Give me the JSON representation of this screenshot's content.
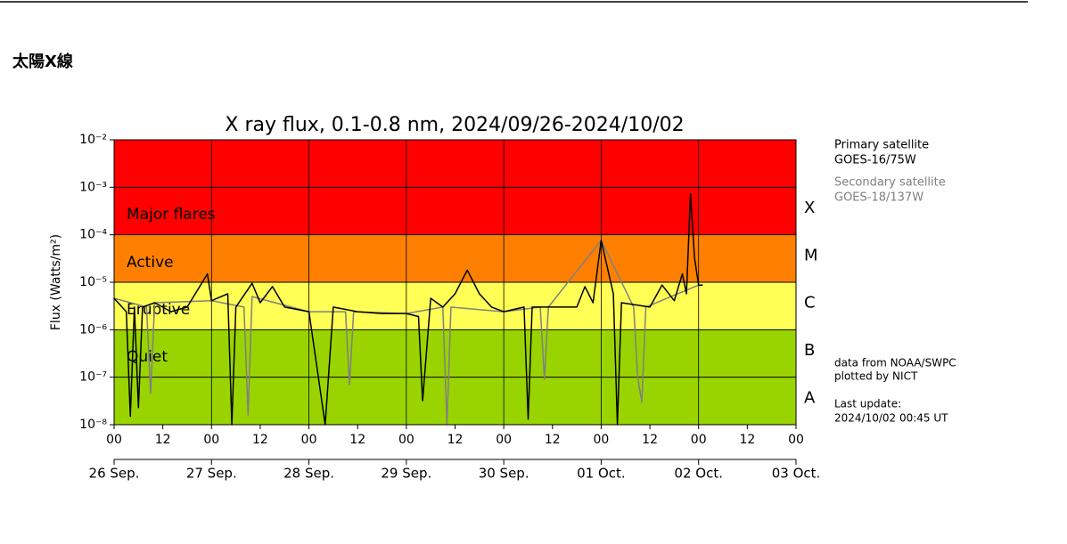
{
  "page": {
    "heading": "太陽X線"
  },
  "chart_data": {
    "type": "line",
    "title": "X ray flux, 0.1-0.8 nm, 2024/09/26-2024/10/02",
    "y_label": "Flux (Watts/m²)",
    "log_y": true,
    "grid": true,
    "ylim": [
      1e-08,
      0.01
    ],
    "yticks": [
      {
        "value": 0.01,
        "label": "10⁻²"
      },
      {
        "value": 0.001,
        "label": "10⁻³"
      },
      {
        "value": 0.0001,
        "label": "10⁻⁴"
      },
      {
        "value": 1e-05,
        "label": "10⁻⁵"
      },
      {
        "value": 1e-06,
        "label": "10⁻⁶"
      },
      {
        "value": 1e-07,
        "label": "10⁻⁷"
      },
      {
        "value": 1e-08,
        "label": "10⁻⁸"
      }
    ],
    "xlim": [
      "2024-09-26T00:00",
      "2024-10-03T00:00"
    ],
    "xticks": [
      {
        "value": "2024-09-26T00:00",
        "label": "00"
      },
      {
        "value": "2024-09-26T12:00",
        "label": "12"
      },
      {
        "value": "2024-09-27T00:00",
        "label": "00"
      },
      {
        "value": "2024-09-27T12:00",
        "label": "12"
      },
      {
        "value": "2024-09-28T00:00",
        "label": "00"
      },
      {
        "value": "2024-09-28T12:00",
        "label": "12"
      },
      {
        "value": "2024-09-29T00:00",
        "label": "00"
      },
      {
        "value": "2024-09-29T12:00",
        "label": "12"
      },
      {
        "value": "2024-09-30T00:00",
        "label": "00"
      },
      {
        "value": "2024-09-30T12:00",
        "label": "12"
      },
      {
        "value": "2024-10-01T00:00",
        "label": "00"
      },
      {
        "value": "2024-10-01T12:00",
        "label": "12"
      },
      {
        "value": "2024-10-02T00:00",
        "label": "00"
      },
      {
        "value": "2024-10-02T12:00",
        "label": "12"
      },
      {
        "value": "2024-10-03T00:00",
        "label": "00"
      }
    ],
    "date_ticks": [
      {
        "value": "2024-09-26T00:00",
        "label": "26 Sep."
      },
      {
        "value": "2024-09-27T00:00",
        "label": "27 Sep."
      },
      {
        "value": "2024-09-28T00:00",
        "label": "28 Sep."
      },
      {
        "value": "2024-09-29T00:00",
        "label": "29 Sep."
      },
      {
        "value": "2024-09-30T00:00",
        "label": "30 Sep."
      },
      {
        "value": "2024-10-01T00:00",
        "label": "01 Oct."
      },
      {
        "value": "2024-10-02T00:00",
        "label": "02 Oct."
      },
      {
        "value": "2024-10-03T00:00",
        "label": "03 Oct."
      }
    ],
    "bands": [
      {
        "name": "Major flares",
        "from": 0.0001,
        "to": 0.01,
        "color": "#ff0000"
      },
      {
        "name": "Active",
        "from": 1e-05,
        "to": 0.0001,
        "color": "#ff8000"
      },
      {
        "name": "Eruptive",
        "from": 1e-06,
        "to": 1e-05,
        "color": "#ffff55"
      },
      {
        "name": "Quiet",
        "from": 1e-08,
        "to": 1e-06,
        "color": "#99d400"
      }
    ],
    "class_labels": [
      {
        "label": "X",
        "from": 0.0001,
        "to": 0.001
      },
      {
        "label": "M",
        "from": 1e-05,
        "to": 0.0001
      },
      {
        "label": "C",
        "from": 1e-06,
        "to": 1e-05
      },
      {
        "label": "B",
        "from": 1e-07,
        "to": 1e-06
      },
      {
        "label": "A",
        "from": 1e-08,
        "to": 1e-07
      }
    ],
    "series": [
      {
        "name": "Secondary satellite",
        "satellite": "GOES-18/137W",
        "color": "#808080",
        "x": [
          "2024-09-26T00:00",
          "2024-09-26T08:00",
          "2024-09-26T09:00",
          "2024-09-26T10:00",
          "2024-09-27T00:00",
          "2024-09-27T08:00",
          "2024-09-27T09:00",
          "2024-09-27T10:00",
          "2024-09-28T00:00",
          "2024-09-28T09:00",
          "2024-09-28T10:00",
          "2024-09-28T11:00",
          "2024-09-29T00:00",
          "2024-09-29T09:00",
          "2024-09-29T10:00",
          "2024-09-29T11:00",
          "2024-09-30T00:00",
          "2024-09-30T09:00",
          "2024-09-30T10:00",
          "2024-09-30T11:00",
          "2024-10-01T00:00",
          "2024-10-01T08:00",
          "2024-10-01T09:00",
          "2024-10-01T10:00",
          "2024-10-01T11:00",
          "2024-10-02T00:00"
        ],
        "values": [
          4.6e-06,
          3e-06,
          4.5e-08,
          3.7e-06,
          4.1e-06,
          3e-06,
          1.6e-08,
          5e-06,
          2.4e-06,
          2.4e-06,
          7e-08,
          2.4e-06,
          2.2e-06,
          3e-06,
          1e-08,
          3e-06,
          2.4e-06,
          3e-06,
          9e-08,
          3e-06,
          7.6e-05,
          3e-06,
          1e-07,
          3e-08,
          3e-06,
          8.7e-06
        ]
      },
      {
        "name": "Primary satellite",
        "satellite": "GOES-16/75W",
        "color": "#000000",
        "x": [
          "2024-09-26T00:00",
          "2024-09-26T03:00",
          "2024-09-26T04:00",
          "2024-09-26T05:00",
          "2024-09-26T06:00",
          "2024-09-26T07:00",
          "2024-09-26T10:00",
          "2024-09-26T14:00",
          "2024-09-26T18:00",
          "2024-09-26T23:00",
          "2024-09-27T00:00",
          "2024-09-27T04:00",
          "2024-09-27T05:00",
          "2024-09-27T06:00",
          "2024-09-27T10:00",
          "2024-09-27T12:00",
          "2024-09-27T15:00",
          "2024-09-27T18:00",
          "2024-09-28T00:00",
          "2024-09-28T04:00",
          "2024-09-28T06:00",
          "2024-09-28T12:00",
          "2024-09-28T18:00",
          "2024-09-29T00:00",
          "2024-09-29T03:00",
          "2024-09-29T04:00",
          "2024-09-29T06:00",
          "2024-09-29T09:00",
          "2024-09-29T12:00",
          "2024-09-29T15:00",
          "2024-09-29T18:00",
          "2024-09-29T21:00",
          "2024-09-30T00:00",
          "2024-09-30T05:00",
          "2024-09-30T06:00",
          "2024-09-30T07:00",
          "2024-09-30T12:00",
          "2024-09-30T18:00",
          "2024-09-30T20:00",
          "2024-09-30T22:00",
          "2024-10-01T00:00",
          "2024-10-01T03:00",
          "2024-10-01T04:00",
          "2024-10-01T05:00",
          "2024-10-01T12:00",
          "2024-10-01T15:00",
          "2024-10-01T18:00",
          "2024-10-01T20:00",
          "2024-10-01T21:00",
          "2024-10-01T22:00",
          "2024-10-01T23:00",
          "2024-10-02T00:00",
          "2024-10-02T01:00"
        ],
        "values": [
          4.6e-06,
          2.4e-06,
          1.5e-08,
          3e-06,
          2.3e-08,
          3e-06,
          3.7e-06,
          2.4e-06,
          3e-06,
          1.5e-05,
          4.1e-06,
          5.7e-06,
          1e-08,
          3e-06,
          9.5e-06,
          3.7e-06,
          8.1e-06,
          3e-06,
          2.4e-06,
          1e-08,
          3e-06,
          2.4e-06,
          2.2e-06,
          2.2e-06,
          1.9e-06,
          3.2e-08,
          4.6e-06,
          3e-06,
          5.7e-06,
          1.8e-05,
          5.7e-06,
          3e-06,
          2.4e-06,
          3e-06,
          1.3e-08,
          3e-06,
          3e-06,
          3e-06,
          8.1e-06,
          3.7e-06,
          7.6e-05,
          5.7e-06,
          1e-08,
          3.7e-06,
          3e-06,
          8.7e-06,
          4.1e-06,
          1.5e-05,
          5.7e-06,
          0.00072,
          3.2e-05,
          8.7e-06,
          8.7e-06
        ]
      }
    ],
    "notes": [
      "data from NOAA/SWPC",
      "plotted by NICT"
    ],
    "update_label": "Last update:",
    "update_time": "2024/10/02 00:45 UT"
  }
}
